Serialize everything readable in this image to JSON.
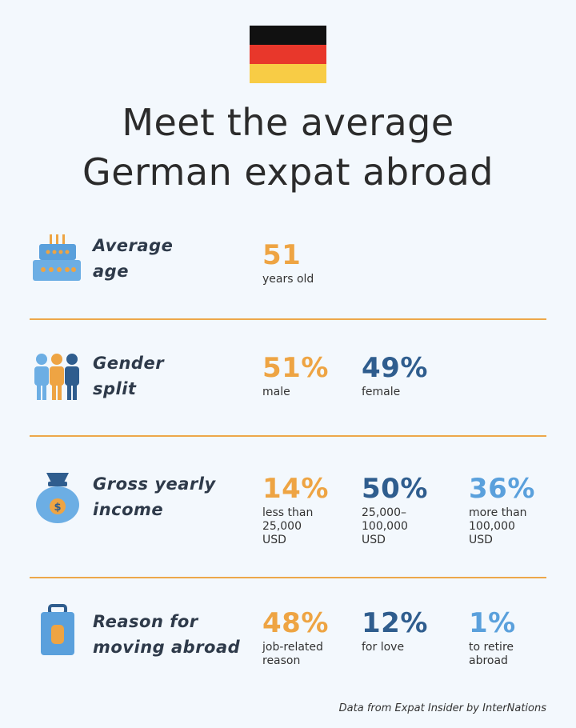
{
  "flag": {
    "colors": [
      "#111111",
      "#e8372b",
      "#f8cc45"
    ]
  },
  "title": {
    "line1": "Meet the average",
    "line2": "German expat abroad"
  },
  "colors": {
    "orange": "#eea443",
    "dark_blue": "#2f5d8e",
    "light_blue": "#5aa0dc",
    "divider": "#eda74a"
  },
  "age": {
    "icon": "birthday-cake-icon",
    "label_line1": "Average",
    "label_line2": "age",
    "stats": [
      {
        "value": "51",
        "desc": [
          "years old"
        ]
      }
    ]
  },
  "gender": {
    "icon": "people-icon",
    "label_line1": "Gender",
    "label_line2": "split",
    "stats": [
      {
        "value": "51%",
        "desc": [
          "male"
        ]
      },
      {
        "value": "49%",
        "desc": [
          "female"
        ]
      }
    ]
  },
  "income": {
    "icon": "money-bag-icon",
    "label_line1": "Gross yearly",
    "label_line2": "income",
    "stats": [
      {
        "value": "14%",
        "desc": [
          "less than",
          "25,000",
          "USD"
        ]
      },
      {
        "value": "50%",
        "desc": [
          "25,000–",
          "100,000",
          "USD"
        ]
      },
      {
        "value": "36%",
        "desc": [
          "more than",
          "100,000",
          "USD"
        ]
      }
    ]
  },
  "reason": {
    "icon": "suitcase-icon",
    "label_line1": "Reason for",
    "label_line2": "moving abroad",
    "stats": [
      {
        "value": "48%",
        "desc": [
          "job-related",
          "reason"
        ]
      },
      {
        "value": "12%",
        "desc": [
          "for love"
        ]
      },
      {
        "value": "1%",
        "desc": [
          "to retire",
          "abroad"
        ]
      }
    ]
  },
  "footer": "Data from Expat Insider by InterNations"
}
